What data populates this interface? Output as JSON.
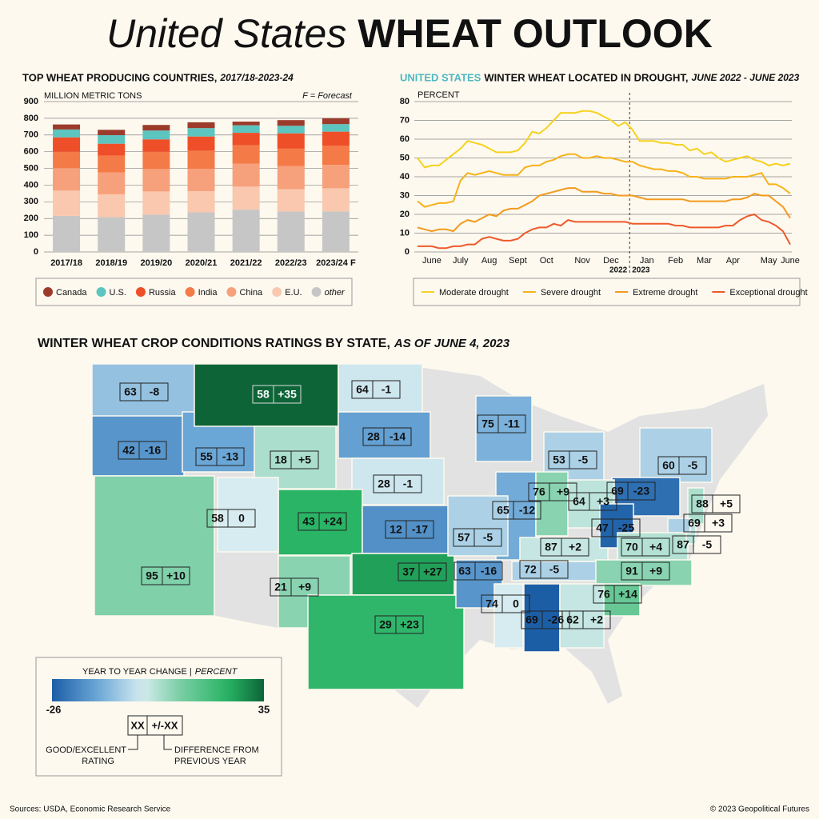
{
  "header": {
    "title_lead": "United States",
    "title_main": "WHEAT OUTLOOK"
  },
  "chart_data": [
    {
      "type": "stacked-bar",
      "title": "TOP WHEAT PRODUCING COUNTRIES,",
      "subtitle": "2017/18-2023-24",
      "y_label": "MILLION METRIC TONS",
      "note": "F = Forecast",
      "categories": [
        "2017/18",
        "2018/19",
        "2019/20",
        "2020/21",
        "2021/22",
        "2022/23",
        "2023/24 F"
      ],
      "series": [
        {
          "name": "Canada",
          "color": "#9c3b2b",
          "values": [
            30,
            32,
            33,
            35,
            22,
            34,
            35
          ]
        },
        {
          "name": "U.S.",
          "color": "#5cc5c0",
          "values": [
            47,
            51,
            53,
            50,
            45,
            45,
            45
          ]
        },
        {
          "name": "Russia",
          "color": "#ef4f28",
          "values": [
            86,
            72,
            74,
            85,
            75,
            92,
            85
          ]
        },
        {
          "name": "India",
          "color": "#f47b47",
          "values": [
            99,
            100,
            104,
            108,
            110,
            104,
            114
          ]
        },
        {
          "name": "China",
          "color": "#f7a07c",
          "values": [
            134,
            131,
            134,
            134,
            137,
            138,
            140
          ]
        },
        {
          "name": "E.U.",
          "color": "#f9c8ae",
          "values": [
            151,
            137,
            139,
            127,
            138,
            134,
            138
          ]
        },
        {
          "name": "other",
          "color": "#c6c6c6",
          "values": [
            216,
            208,
            223,
            237,
            253,
            242,
            243
          ]
        }
      ],
      "ylim": [
        0,
        900
      ],
      "yticks": [
        0,
        100,
        200,
        300,
        400,
        500,
        600,
        700,
        800,
        900
      ],
      "grid": true
    },
    {
      "type": "line",
      "title_highlight": "UNITED STATES",
      "title": "WINTER WHEAT LOCATED IN DROUGHT,",
      "subtitle": "JUNE 2022 - JUNE 2023",
      "y_label": "PERCENT",
      "categories": [
        null,
        null,
        "June",
        null,
        null,
        null,
        "July",
        null,
        null,
        null,
        "Aug",
        null,
        null,
        null,
        "Sept",
        null,
        null,
        null,
        "Oct",
        null,
        null,
        null,
        null,
        "Nov",
        null,
        null,
        null,
        "Dec",
        null,
        null,
        null,
        null,
        "Jan",
        null,
        null,
        null,
        "Feb",
        null,
        null,
        null,
        "Mar",
        null,
        null,
        null,
        "Apr",
        null,
        null,
        null,
        null,
        "May",
        null,
        null,
        "June"
      ],
      "year_labels": [
        "2022",
        "2023"
      ],
      "series": [
        {
          "name": "Moderate drought",
          "color": "#f5d21f",
          "values": [
            50,
            45,
            46,
            46,
            49,
            52,
            55,
            59,
            58,
            57,
            55,
            53,
            53,
            53,
            54,
            58,
            64,
            63,
            66,
            70,
            74,
            74,
            74,
            75,
            75,
            74,
            72,
            70,
            67,
            69,
            65,
            59,
            59,
            59,
            58,
            58,
            57,
            57,
            54,
            55,
            52,
            53,
            50,
            48,
            49,
            50,
            51,
            49,
            48,
            46,
            47,
            46,
            47
          ]
        },
        {
          "name": "Severe drought",
          "color": "#f6b21a",
          "values": [
            27,
            24,
            25,
            26,
            26,
            27,
            38,
            42,
            41,
            42,
            43,
            42,
            41,
            41,
            41,
            45,
            46,
            46,
            48,
            49,
            51,
            52,
            52,
            50,
            50,
            51,
            50,
            50,
            49,
            48,
            48,
            46,
            45,
            44,
            44,
            43,
            43,
            42,
            40,
            40,
            39,
            39,
            39,
            39,
            40,
            40,
            40,
            41,
            42,
            36,
            36,
            34,
            31
          ]
        },
        {
          "name": "Extreme drought",
          "color": "#f39a1e",
          "values": [
            13,
            12,
            11,
            12,
            12,
            11,
            15,
            17,
            16,
            18,
            20,
            19,
            22,
            23,
            23,
            25,
            27,
            30,
            31,
            32,
            33,
            34,
            34,
            32,
            32,
            32,
            31,
            31,
            30,
            30,
            30,
            29,
            28,
            28,
            28,
            28,
            28,
            28,
            27,
            27,
            27,
            27,
            27,
            27,
            28,
            28,
            29,
            31,
            30,
            30,
            27,
            24,
            18
          ]
        },
        {
          "name": "Exceptional drought",
          "color": "#ee5a2a",
          "values": [
            3,
            3,
            3,
            2,
            2,
            3,
            3,
            4,
            4,
            7,
            8,
            7,
            6,
            6,
            7,
            10,
            12,
            13,
            13,
            15,
            14,
            17,
            16,
            16,
            16,
            16,
            16,
            16,
            16,
            16,
            15,
            15,
            15,
            15,
            15,
            15,
            14,
            14,
            13,
            13,
            13,
            13,
            13,
            14,
            14,
            17,
            19,
            20,
            17,
            16,
            14,
            11,
            4
          ]
        }
      ],
      "ylim": [
        0,
        80
      ],
      "yticks": [
        0,
        10,
        20,
        30,
        40,
        50,
        60,
        70,
        80
      ],
      "grid": true
    }
  ],
  "map": {
    "title": "WINTER WHEAT CROP CONDITIONS RATINGS BY STATE,",
    "subtitle": "AS OF JUNE 4, 2023",
    "states": [
      {
        "rating": 63,
        "change": -8
      },
      {
        "rating": 42,
        "change": -16
      },
      {
        "rating": 55,
        "change": -13
      },
      {
        "rating": 58,
        "change": {
          "value": 35,
          "label": "+35"
        }
      },
      {
        "rating": 18,
        "change": {
          "value": 5,
          "label": "+5"
        }
      },
      {
        "rating": 64,
        "change": -1
      },
      {
        "rating": 28,
        "change": -14
      },
      {
        "rating": 28,
        "change": -1
      },
      {
        "rating": 43,
        "change": {
          "value": 24,
          "label": "+24"
        }
      },
      {
        "rating": 58,
        "change": 0
      },
      {
        "rating": 12,
        "change": -17
      },
      {
        "rating": 95,
        "change": {
          "value": 10,
          "label": "+10"
        }
      },
      {
        "rating": 21,
        "change": {
          "value": 9,
          "label": "+9"
        }
      },
      {
        "rating": 37,
        "change": {
          "value": 27,
          "label": "+27"
        }
      },
      {
        "rating": 29,
        "change": {
          "value": 23,
          "label": "+23"
        }
      },
      {
        "rating": 75,
        "change": -11
      },
      {
        "rating": 53,
        "change": -5
      },
      {
        "rating": 60,
        "change": -5
      },
      {
        "rating": 69,
        "change": -23
      },
      {
        "rating": 65,
        "change": -12
      },
      {
        "rating": 76,
        "change": {
          "value": 9,
          "label": "+9"
        }
      },
      {
        "rating": 64,
        "change": {
          "value": 3,
          "label": "+3"
        }
      },
      {
        "rating": 57,
        "change": -5
      },
      {
        "rating": 87,
        "change": {
          "value": 2,
          "label": "+2"
        }
      },
      {
        "rating": 47,
        "change": -25
      },
      {
        "rating": 70,
        "change": {
          "value": 4,
          "label": "+4"
        }
      },
      {
        "rating": 88,
        "change": {
          "value": 5,
          "label": "+5"
        }
      },
      {
        "rating": 69,
        "change": {
          "value": 3,
          "label": "+3"
        }
      },
      {
        "rating": 87,
        "change": -5
      },
      {
        "rating": 63,
        "change": -16
      },
      {
        "rating": 72,
        "change": -5
      },
      {
        "rating": 91,
        "change": {
          "value": 9,
          "label": "+9"
        }
      },
      {
        "rating": 76,
        "change": {
          "value": 14,
          "label": "+14"
        }
      },
      {
        "rating": 74,
        "change": 0
      },
      {
        "rating": 69,
        "change": -26
      },
      {
        "rating": 62,
        "change": {
          "value": 2,
          "label": "+2"
        }
      }
    ],
    "legend": {
      "title": "YEAR TO YEAR CHANGE |",
      "unit": "PERCENT",
      "scale": [
        -26,
        35
      ],
      "key_rating": "XX",
      "key_change": "+/-XX",
      "rating_note": [
        "GOOD/EXCELLENT",
        "RATING"
      ],
      "change_note": [
        "DIFFERENCE FROM",
        "PREVIOUS YEAR"
      ]
    }
  },
  "footer": {
    "source": "Sources: USDA, Economic Research Service",
    "copyright": "© 2023 Geopolitical Futures"
  }
}
